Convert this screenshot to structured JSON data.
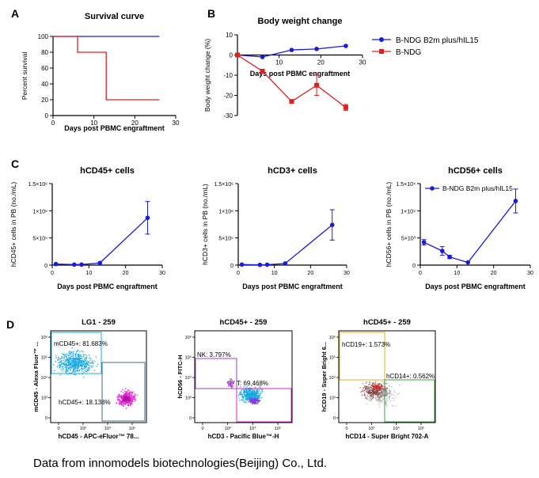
{
  "panels": {
    "A": "A",
    "B": "B",
    "C": "C",
    "D": "D"
  },
  "colors": {
    "ndg15": "#1a1adb",
    "ndg": "#e02020",
    "cyan": "#1aa9e0",
    "magenta": "#e020d0"
  },
  "legend": {
    "ndg15": "B-NDG B2m plus/hIL15",
    "ndg": "B-NDG"
  },
  "caption": "Data from innomodels  biotechnologies(Beijing) Co., Ltd.",
  "chart_data": [
    {
      "id": "survival",
      "type": "line",
      "title": "Survival curve",
      "xlabel": "Days post PBMC engraftment",
      "ylabel": "Percent survival",
      "xlim": [
        0,
        30
      ],
      "ylim": [
        0,
        100
      ],
      "xticks": [
        "0",
        "10",
        "20",
        "30"
      ],
      "yticks": [
        "0",
        "20",
        "40",
        "60",
        "80",
        "100"
      ],
      "series": [
        {
          "name": "B-NDG B2m plus/hIL15",
          "x": [
            0,
            26
          ],
          "y": [
            100,
            100
          ]
        },
        {
          "name": "B-NDG",
          "x": [
            0,
            6,
            6,
            13,
            13,
            26
          ],
          "y": [
            100,
            100,
            80,
            80,
            20,
            20
          ]
        }
      ]
    },
    {
      "id": "bodyweight",
      "type": "line",
      "title": "Body weight change",
      "xlabel": "Days post PBMC engraftment",
      "ylabel": "Body weight change (%)",
      "xlim": [
        0,
        30
      ],
      "ylim": [
        -30,
        10
      ],
      "xticks": [
        "10",
        "20",
        "30"
      ],
      "yticks": [
        "10",
        "0",
        "-10",
        "-20",
        "-30"
      ],
      "series": [
        {
          "name": "B-NDG B2m plus/hIL15",
          "x": [
            0,
            6,
            13,
            19,
            26
          ],
          "y": [
            0,
            -1,
            2.5,
            3,
            4.5
          ]
        },
        {
          "name": "B-NDG",
          "x": [
            0,
            6,
            13,
            19,
            26
          ],
          "y": [
            0,
            -8,
            -23,
            -15,
            -26
          ],
          "err": [
            0,
            0,
            0.8,
            5,
            1.5
          ]
        }
      ]
    },
    {
      "id": "hcd45",
      "type": "line",
      "title": "hCD45+ cells",
      "xlabel": "Days post PBMC engraftment",
      "ylabel": "hCD45+ cells in PB (no./mL)",
      "xlim": [
        0,
        30
      ],
      "ylim": [
        0,
        1500000
      ],
      "xticks": [
        "0",
        "10",
        "20",
        "30"
      ],
      "yticks": [
        "0",
        "5×10⁵",
        "1×10⁶",
        "1.5×10⁶"
      ],
      "series": [
        {
          "name": "B-NDG B2m plus/hIL15",
          "x": [
            1,
            6,
            8,
            13,
            26
          ],
          "y": [
            20000,
            10000,
            10000,
            40000,
            870000
          ],
          "err": [
            0,
            0,
            0,
            0,
            300000
          ]
        }
      ]
    },
    {
      "id": "hcd3",
      "type": "line",
      "title": "hCD3+ cells",
      "xlabel": "Days post PBMC engraftment",
      "ylabel": "hCD3+ cells in PB (no./mL)",
      "xlim": [
        0,
        30
      ],
      "ylim": [
        0,
        1500000
      ],
      "xticks": [
        "0",
        "10",
        "20",
        "30"
      ],
      "yticks": [
        "0",
        "5×10⁵",
        "1×10⁶",
        "1.5×10⁶"
      ],
      "series": [
        {
          "name": "B-NDG B2m plus/hIL15",
          "x": [
            1,
            6,
            8,
            13,
            26
          ],
          "y": [
            10000,
            5000,
            8000,
            30000,
            740000
          ],
          "err": [
            0,
            0,
            0,
            0,
            280000
          ]
        }
      ]
    },
    {
      "id": "hcd56",
      "type": "line",
      "title": "hCD56+ cells",
      "xlabel": "Days post PBMC engraftment",
      "ylabel": "hCD56+ cells in PB (no./mL)",
      "xlim": [
        0,
        30
      ],
      "ylim": [
        0,
        15000
      ],
      "xticks": [
        "0",
        "10",
        "20",
        "30"
      ],
      "yticks": [
        "0",
        "5×10³",
        "1×10⁴",
        "1.5×10⁴"
      ],
      "legend": "B-NDG B2m plus/hIL15",
      "series": [
        {
          "name": "B-NDG B2m plus/hIL15",
          "x": [
            1,
            6,
            8,
            13,
            26
          ],
          "y": [
            4200,
            2600,
            1500,
            500,
            11800
          ],
          "err": [
            500,
            800,
            300,
            0,
            2200
          ]
        }
      ]
    }
  ],
  "flow": [
    {
      "id": "flow1",
      "title": "LG1 - 259",
      "xlabel": "hCD45 - APC-eFluor™ 78...",
      "ylabel": "mCD45 - Alexa Fluor™ ...",
      "gates": [
        {
          "label": "mCD45+: 81.683%",
          "color": "#1aa9e0"
        },
        {
          "label": "hCD45+: 18.138%",
          "color": "#7a8fa0"
        }
      ]
    },
    {
      "id": "flow2",
      "title": "hCD45+ - 259",
      "xlabel": "hCD3 - Pacific Blue™-H",
      "ylabel": "hCD56 - FITC-H",
      "gates": [
        {
          "label": "NK: 3.797%",
          "color": "#a040c0"
        },
        {
          "label": "T: 69.468%",
          "color": "#e020d0"
        }
      ]
    },
    {
      "id": "flow3",
      "title": "hCD45+ - 259",
      "xlabel": "hCD14 - Super Bright 702-A",
      "ylabel": "hCD19 - Super Bright 6...",
      "gates": [
        {
          "label": "hCD19+: 1.573%",
          "color": "#e0b020"
        },
        {
          "label": "hCD14+: 0.562%",
          "color": "#40a040"
        }
      ]
    }
  ],
  "flow_ticks": {
    "y": [
      "10⁶",
      "10⁵",
      "10⁴",
      "10³",
      "0"
    ],
    "x": [
      "0",
      "10³",
      "10⁴",
      "10⁵"
    ]
  }
}
